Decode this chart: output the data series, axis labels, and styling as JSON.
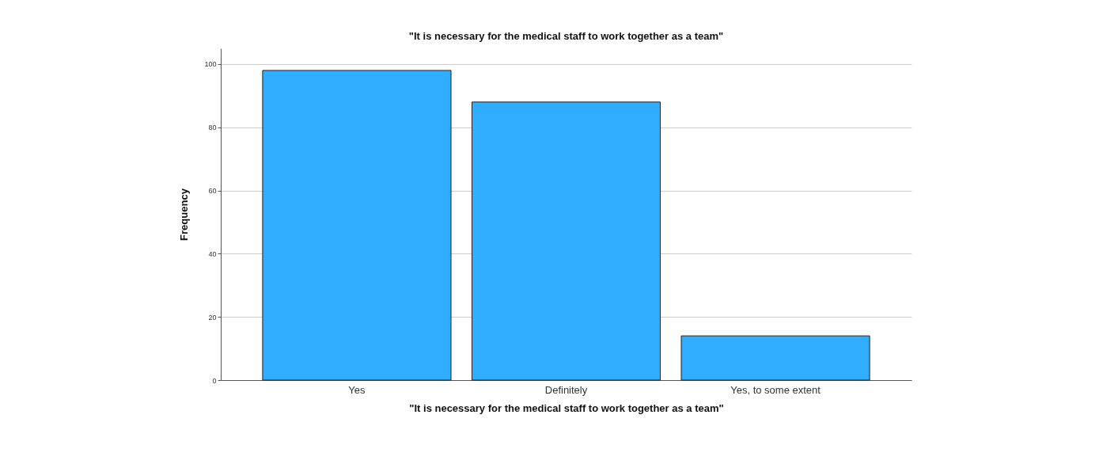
{
  "chart_data": {
    "type": "bar",
    "title": "\"It is necessary for the medical staff to work together as a team\"",
    "xlabel": "\"It is necessary for the medical staff to work together as a team\"",
    "ylabel": "Frequency",
    "categories": [
      "Yes",
      "Definitely",
      "Yes, to some extent"
    ],
    "values": [
      98,
      88,
      14
    ],
    "color": "#30adff",
    "ylim": [
      0,
      105
    ],
    "yticks": [
      0,
      20,
      40,
      60,
      80,
      100
    ],
    "grid": "y"
  }
}
